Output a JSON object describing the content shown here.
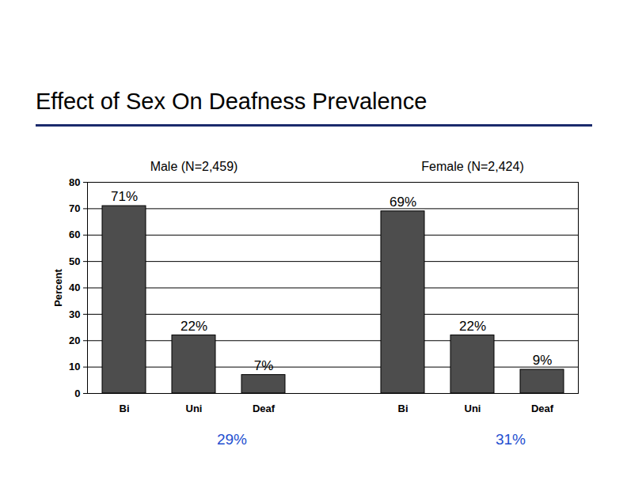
{
  "title": "Effect of Sex On Deafness Prevalence",
  "chart_data": [
    {
      "type": "bar",
      "title": "Male (N=2,459)",
      "categories": [
        "Bi",
        "Uni",
        "Deaf"
      ],
      "values": [
        71,
        22,
        7
      ],
      "value_labels": [
        "71%",
        "22%",
        "7%"
      ],
      "data_labels": true,
      "color": "#4d4d4d",
      "ylabel": "Percent",
      "ylim": [
        0,
        80
      ],
      "yticks": [
        0,
        10,
        20,
        30,
        40,
        50,
        60,
        70,
        80
      ],
      "grid": true,
      "annotations": [
        "29%"
      ]
    },
    {
      "type": "bar",
      "title": "Female (N=2,424)",
      "categories": [
        "Bi",
        "Uni",
        "Deaf"
      ],
      "values": [
        69,
        22,
        9
      ],
      "value_labels": [
        "69%",
        "22%",
        "9%"
      ],
      "data_labels": true,
      "color": "#4d4d4d",
      "tick_labels": "x",
      "ylim": [
        0,
        80
      ],
      "yticks": [
        0,
        10,
        20,
        30,
        40,
        50,
        60,
        70,
        80
      ],
      "grid": true,
      "annotations": [
        "31%"
      ]
    }
  ]
}
